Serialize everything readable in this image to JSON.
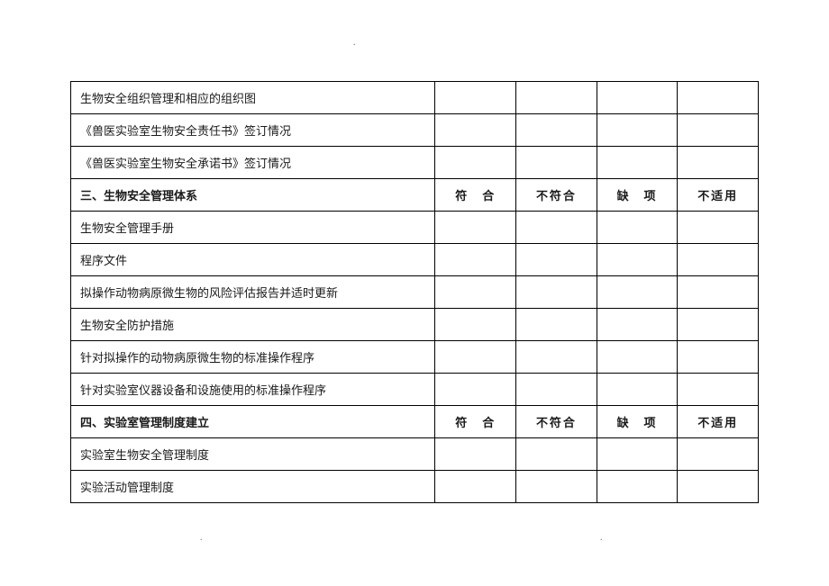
{
  "decor": {
    "dot": "."
  },
  "opts": {
    "conform": "符　合",
    "nonconform": "不符合",
    "missing": "缺　项",
    "na": "不适用"
  },
  "rows": [
    {
      "type": "item",
      "text": "生物安全组织管理和相应的组织图",
      "cols": 5
    },
    {
      "type": "item",
      "text": "《兽医实验室生物安全责任书》签订情况",
      "cols": 5
    },
    {
      "type": "item",
      "text": "《兽医实验室生物安全承诺书》签订情况",
      "cols": 5
    },
    {
      "type": "header",
      "text": "三、生物安全管理体系"
    },
    {
      "type": "item",
      "text": "生物安全管理手册",
      "cols": 5
    },
    {
      "type": "item",
      "text": "程序文件",
      "cols": 5
    },
    {
      "type": "item",
      "text": "拟操作动物病原微生物的风险评估报告并适时更新",
      "cols": 5
    },
    {
      "type": "item",
      "text": "生物安全防护措施",
      "cols": 5
    },
    {
      "type": "item",
      "text": "针对拟操作的动物病原微生物的标准操作程序",
      "cols": 5
    },
    {
      "type": "item",
      "text": "针对实验室仪器设备和设施使用的标准操作程序",
      "cols": 5
    },
    {
      "type": "header",
      "text": "四、实验室管理制度建立"
    },
    {
      "type": "item",
      "text": "实验室生物安全管理制度",
      "cols": 5
    },
    {
      "type": "item",
      "text": "实验活动管理制度",
      "cols": 5
    }
  ]
}
